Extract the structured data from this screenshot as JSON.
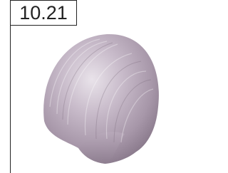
{
  "label": "10.21"
}
